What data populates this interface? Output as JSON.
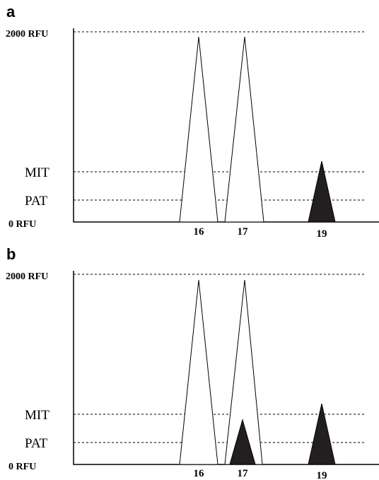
{
  "panels": [
    {
      "letter": "a",
      "rfu_top_label": "2000 RFU",
      "mit_label": "MIT",
      "pat_label": "PAT",
      "rfu_zero_label": "0 RFU",
      "peaks": [
        {
          "label": "16",
          "height_fraction": 0.97,
          "filled": false
        },
        {
          "label": "17",
          "height_fraction": 0.97,
          "filled": false
        },
        {
          "label": "19",
          "height_fraction": 0.32,
          "filled": true
        }
      ]
    },
    {
      "letter": "b",
      "rfu_top_label": "2000 RFU",
      "mit_label": "MIT",
      "pat_label": "PAT",
      "rfu_zero_label": "0 RFU",
      "peaks": [
        {
          "label": "16",
          "height_fraction": 0.97,
          "filled": false
        },
        {
          "label": "17",
          "height_fraction": 0.97,
          "filled": false
        },
        {
          "label": "17",
          "height_fraction": 0.23,
          "filled": true
        },
        {
          "label": "19",
          "height_fraction": 0.32,
          "filled": true
        }
      ]
    }
  ]
}
